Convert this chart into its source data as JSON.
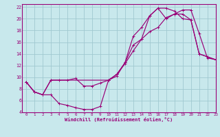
{
  "xlabel": "Windchill (Refroidissement éolien,°C)",
  "bg_color": "#c8e8ec",
  "grid_color": "#a0c8d0",
  "line_color": "#990077",
  "xlim": [
    -0.5,
    23
  ],
  "ylim": [
    4,
    22.5
  ],
  "xticks": [
    0,
    1,
    2,
    3,
    4,
    5,
    6,
    7,
    8,
    9,
    10,
    11,
    12,
    13,
    14,
    15,
    16,
    17,
    18,
    19,
    20,
    21,
    22,
    23
  ],
  "yticks": [
    4,
    6,
    8,
    10,
    12,
    14,
    16,
    18,
    20,
    22
  ],
  "curve1_x": [
    0,
    1,
    2,
    3,
    4,
    5,
    6,
    7,
    8,
    9,
    10,
    11,
    12,
    13,
    14,
    15,
    16,
    17,
    18,
    19,
    20,
    21,
    22,
    23
  ],
  "curve1_y": [
    9.2,
    7.5,
    7.0,
    7.0,
    5.5,
    5.2,
    4.8,
    4.5,
    4.5,
    5.0,
    9.5,
    10.2,
    12.5,
    17.0,
    18.5,
    20.5,
    21.8,
    21.8,
    21.3,
    20.0,
    19.8,
    14.0,
    13.5,
    13.0
  ],
  "curve2_x": [
    0,
    1,
    2,
    3,
    10,
    11,
    12,
    13,
    14,
    15,
    16,
    17,
    18,
    19,
    20,
    21,
    22,
    23
  ],
  "curve2_y": [
    9.2,
    7.5,
    7.0,
    9.5,
    9.5,
    10.5,
    12.5,
    15.5,
    16.5,
    20.5,
    21.8,
    20.0,
    20.8,
    20.8,
    19.8,
    14.0,
    13.5,
    13.0
  ],
  "curve3_x": [
    0,
    1,
    2,
    3,
    4,
    5,
    6,
    7,
    8,
    9,
    10,
    11,
    12,
    13,
    14,
    15,
    16,
    17,
    18,
    19,
    20,
    21,
    22,
    23
  ],
  "curve3_y": [
    9.2,
    7.5,
    7.0,
    9.5,
    9.5,
    9.5,
    9.8,
    8.5,
    8.5,
    9.0,
    9.5,
    10.5,
    12.3,
    14.5,
    16.5,
    17.8,
    18.5,
    20.2,
    20.8,
    21.5,
    21.5,
    17.5,
    13.3,
    13.0
  ]
}
